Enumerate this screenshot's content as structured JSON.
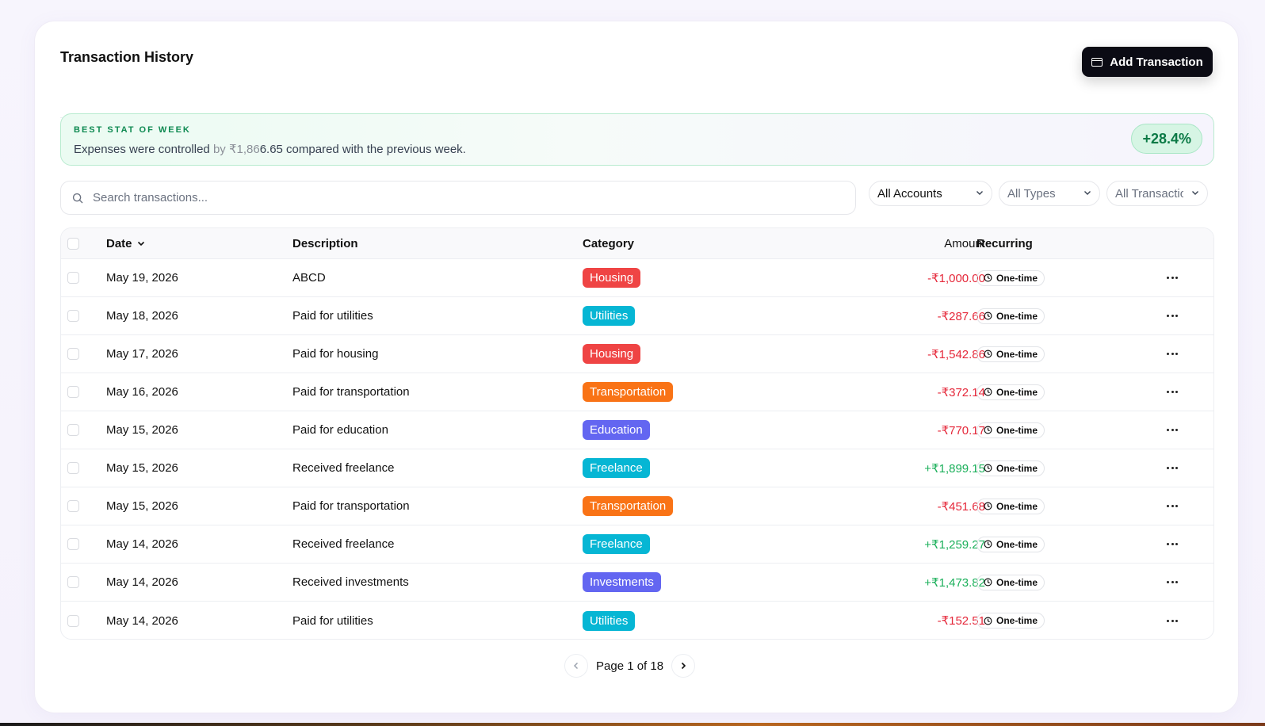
{
  "header": {
    "title": "Transaction History",
    "add_button": "Add Transaction"
  },
  "stat": {
    "label": "BEST STAT OF WEEK",
    "text_before": "Expenses were controlled",
    "text_muted": "by ₹1,86",
    "text_after": "6.65 compared with the previous week.",
    "badge": "+28.4%"
  },
  "search": {
    "placeholder": "Search transactions..."
  },
  "filters": {
    "accounts": "All Accounts",
    "types": "All Types",
    "transactions": "All Transactions"
  },
  "table": {
    "headers": {
      "date": "Date",
      "description": "Description",
      "category": "Category",
      "amount": "Amount",
      "recurring": "Recurring"
    },
    "rows": [
      {
        "date": "May 19, 2026",
        "description": "ABCD",
        "category": "Housing",
        "amount": "-₹1,000.00",
        "recurring": "One-time"
      },
      {
        "date": "May 18, 2026",
        "description": "Paid for utilities",
        "category": "Utilities",
        "amount": "-₹287.66",
        "recurring": "One-time"
      },
      {
        "date": "May 17, 2026",
        "description": "Paid for housing",
        "category": "Housing",
        "amount": "-₹1,542.86",
        "recurring": "One-time"
      },
      {
        "date": "May 16, 2026",
        "description": "Paid for transportation",
        "category": "Transportation",
        "amount": "-₹372.14",
        "recurring": "One-time"
      },
      {
        "date": "May 15, 2026",
        "description": "Paid for education",
        "category": "Education",
        "amount": "-₹770.17",
        "recurring": "One-time"
      },
      {
        "date": "May 15, 2026",
        "description": "Received freelance",
        "category": "Freelance",
        "amount": "+₹1,899.15",
        "recurring": "One-time"
      },
      {
        "date": "May 15, 2026",
        "description": "Paid for transportation",
        "category": "Transportation",
        "amount": "-₹451.68",
        "recurring": "One-time"
      },
      {
        "date": "May 14, 2026",
        "description": "Received freelance",
        "category": "Freelance",
        "amount": "+₹1,259.27",
        "recurring": "One-time"
      },
      {
        "date": "May 14, 2026",
        "description": "Received investments",
        "category": "Investments",
        "amount": "+₹1,473.82",
        "recurring": "One-time"
      },
      {
        "date": "May 14, 2026",
        "description": "Paid for utilities",
        "category": "Utilities",
        "amount": "-₹152.51",
        "recurring": "One-time"
      }
    ]
  },
  "category_colors": {
    "Housing": "#ef4444",
    "Utilities": "#06b6d4",
    "Transportation": "#f97316",
    "Education": "#6366f1",
    "Freelance": "#06b6d4",
    "Investments": "#6366f1"
  },
  "amount_colors": {
    "negative": "#e5283a",
    "positive": "#1cb05b"
  },
  "pagination": {
    "label": "Page 1 of 18"
  }
}
